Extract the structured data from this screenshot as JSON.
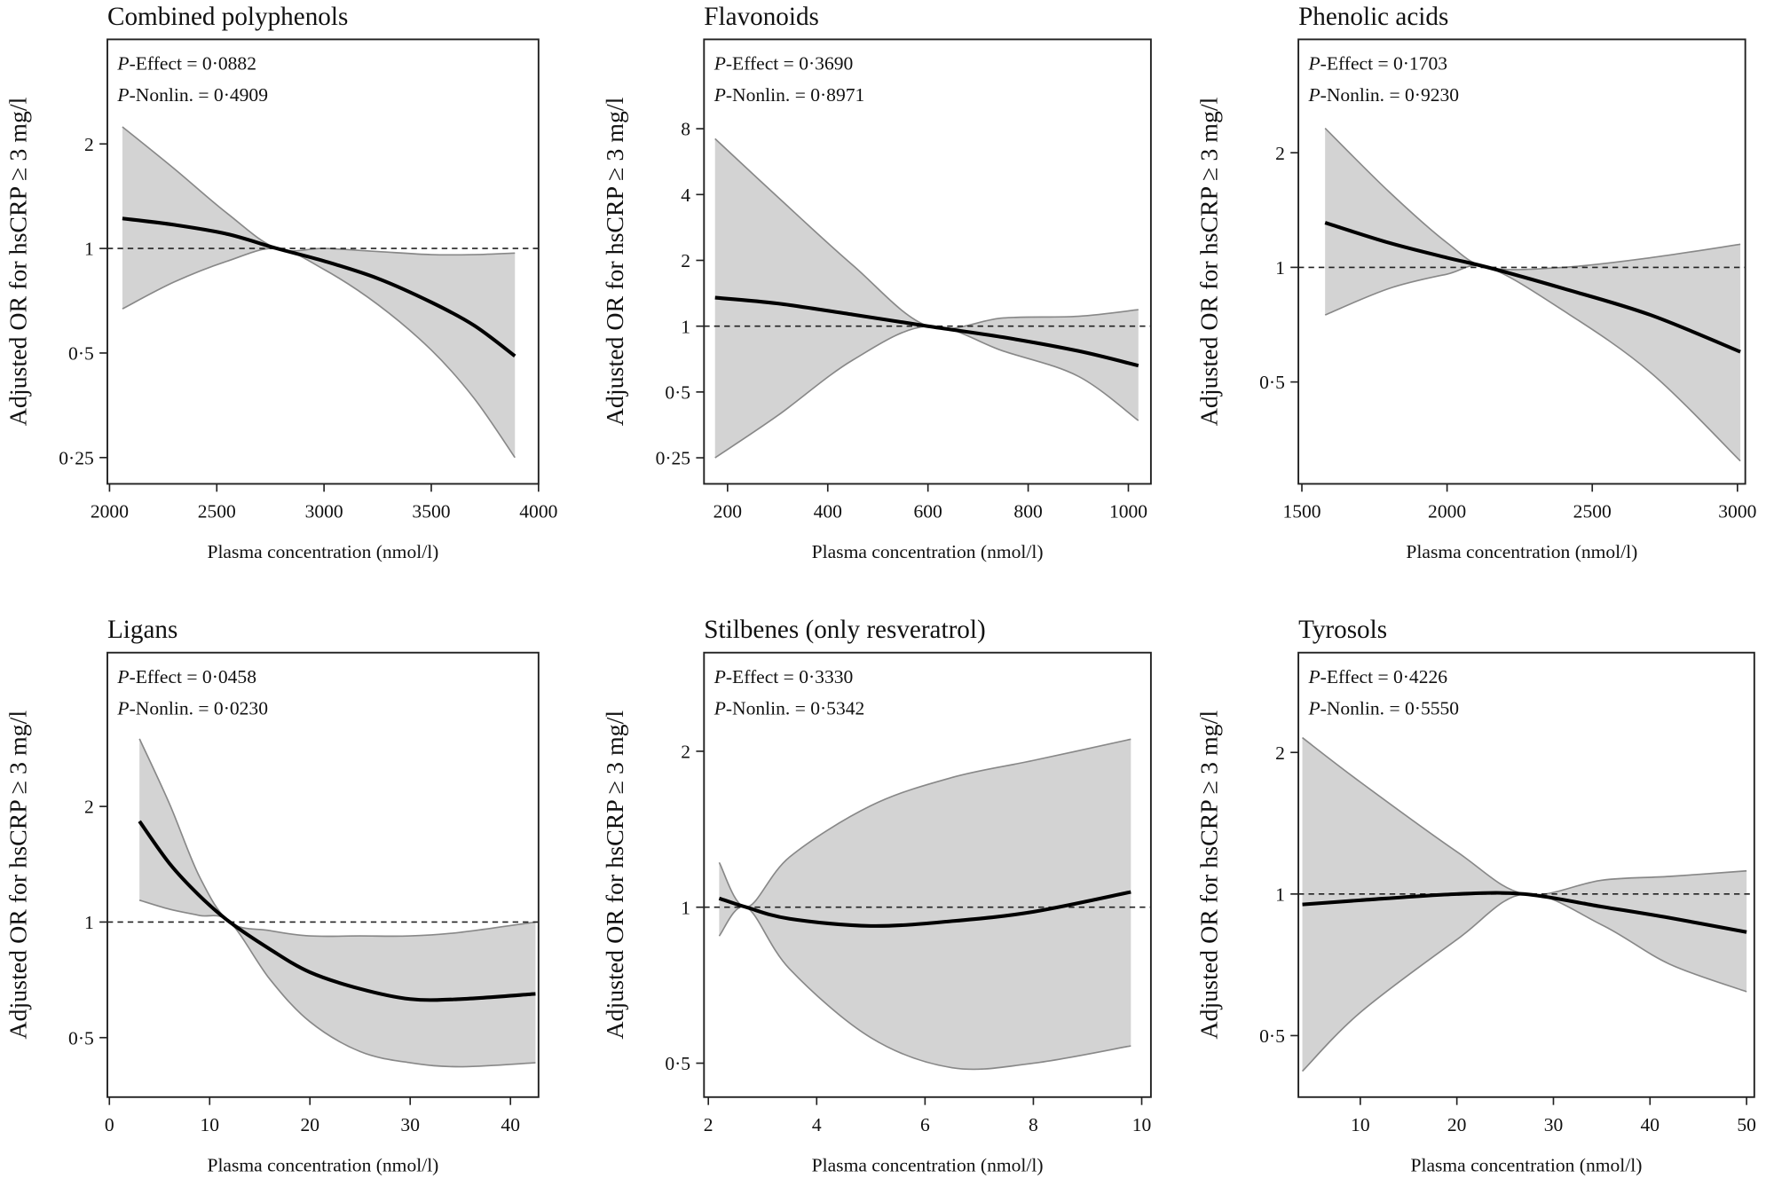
{
  "chart_data": [
    {
      "type": "line",
      "title": "Combined polyphenols",
      "xlabel": "Plasma concentration (nmol/l)",
      "ylabel": "Adjusted OR for hsCRP ≥ 3 mg/l",
      "annotations": [
        {
          "prefix": "P",
          "text": "-Effect = 0·0882"
        },
        {
          "prefix": "P",
          "text": "-Nonlin. = 0·4909"
        }
      ],
      "x": [
        2060,
        2300,
        2550,
        2780,
        3000,
        3250,
        3500,
        3700,
        3890
      ],
      "values": [
        1.22,
        1.17,
        1.1,
        1.0,
        0.92,
        0.82,
        0.7,
        0.6,
        0.49
      ],
      "upper": [
        2.24,
        1.7,
        1.26,
        1.0,
        1.0,
        0.98,
        0.96,
        0.96,
        0.97
      ],
      "lower": [
        0.67,
        0.8,
        0.92,
        1.0,
        0.87,
        0.69,
        0.51,
        0.37,
        0.25
      ],
      "xlim": [
        1990,
        4000
      ],
      "ylim": [
        0.21,
        4
      ],
      "log_y": true,
      "reference_line": 1,
      "xticks": [
        2000,
        2500,
        3000,
        3500,
        4000
      ],
      "yticks": [
        {
          "value": 0.25,
          "label": "0·25"
        },
        {
          "value": 0.5,
          "label": "0·5"
        },
        1,
        2
      ],
      "color": "#000000",
      "band_color": "#d3d3d3"
    },
    {
      "type": "line",
      "title": "Flavonoids",
      "xlabel": "Plasma concentration (nmol/l)",
      "ylabel": "Adjusted OR for hsCRP ≥ 3 mg/l",
      "annotations": [
        {
          "prefix": "P",
          "text": "-Effect = 0·3690"
        },
        {
          "prefix": "P",
          "text": "-Nonlin. = 0·8971"
        }
      ],
      "x": [
        175,
        300,
        450,
        600,
        750,
        900,
        1020
      ],
      "values": [
        1.35,
        1.27,
        1.13,
        1.0,
        0.89,
        0.77,
        0.66
      ],
      "upper": [
        7.2,
        3.9,
        1.9,
        1.0,
        1.09,
        1.11,
        1.19
      ],
      "lower": [
        0.25,
        0.39,
        0.7,
        1.0,
        0.77,
        0.59,
        0.37
      ],
      "xlim": [
        153,
        1045
      ],
      "ylim": [
        0.19,
        20.5
      ],
      "log_y": true,
      "reference_line": 1,
      "xticks": [
        200,
        400,
        600,
        800,
        1000
      ],
      "yticks": [
        {
          "value": 0.25,
          "label": "0·25"
        },
        {
          "value": 0.5,
          "label": "0·5"
        },
        1,
        2,
        4,
        8
      ],
      "color": "#000000",
      "band_color": "#d3d3d3"
    },
    {
      "type": "line",
      "title": "Phenolic acids",
      "xlabel": "Plasma concentration (nmol/l)",
      "ylabel": "Adjusted OR for hsCRP ≥ 3 mg/l",
      "annotations": [
        {
          "prefix": "P",
          "text": "-Effect = 0·1703"
        },
        {
          "prefix": "P",
          "text": "-Nonlin. = 0·9230"
        }
      ],
      "x": [
        1580,
        1800,
        2000,
        2140,
        2400,
        2700,
        3010
      ],
      "values": [
        1.31,
        1.16,
        1.06,
        1.0,
        0.88,
        0.75,
        0.6
      ],
      "upper": [
        2.32,
        1.58,
        1.16,
        1.0,
        1.0,
        1.06,
        1.15
      ],
      "lower": [
        0.75,
        0.88,
        0.96,
        1.0,
        0.77,
        0.53,
        0.31
      ],
      "xlim": [
        1488,
        3027
      ],
      "ylim": [
        0.27,
        3.97
      ],
      "log_y": true,
      "reference_line": 1,
      "xticks": [
        1500,
        2000,
        2500,
        3000
      ],
      "yticks": [
        {
          "value": 0.5,
          "label": "0·5"
        },
        1,
        2
      ],
      "color": "#000000",
      "band_color": "#d3d3d3"
    },
    {
      "type": "line",
      "title": "Ligans",
      "xlabel": "Plasma concentration (nmol/l)",
      "ylabel": "Adjusted OR for hsCRP ≥ 3 mg/l",
      "annotations": [
        {
          "prefix": "P",
          "text": "-Effect = 0·0458"
        },
        {
          "prefix": "P",
          "text": "-Nonlin. = 0·0230"
        }
      ],
      "x": [
        3,
        6,
        9,
        12,
        16,
        20,
        25,
        30,
        35,
        42.5
      ],
      "values": [
        1.83,
        1.42,
        1.17,
        1.0,
        0.85,
        0.74,
        0.67,
        0.63,
        0.63,
        0.65
      ],
      "upper": [
        3.0,
        2.03,
        1.31,
        1.0,
        0.95,
        0.92,
        0.92,
        0.92,
        0.94,
        1.0
      ],
      "lower": [
        1.14,
        1.08,
        1.04,
        1.0,
        0.71,
        0.55,
        0.46,
        0.43,
        0.42,
        0.43
      ],
      "xlim": [
        -0.2,
        42.8
      ],
      "ylim": [
        0.35,
        5.03
      ],
      "log_y": true,
      "reference_line": 1,
      "xticks": [
        0,
        10,
        20,
        30,
        40
      ],
      "yticks": [
        {
          "value": 0.5,
          "label": "0·5"
        },
        1,
        2
      ],
      "color": "#000000",
      "band_color": "#d3d3d3"
    },
    {
      "type": "line",
      "title": "Stilbenes (only resveratrol)",
      "xlabel": "Plasma concentration (nmol/l)",
      "ylabel": "Adjusted OR for hsCRP ≥ 3 mg/l",
      "annotations": [
        {
          "prefix": "P",
          "text": "-Effect = 0·3330"
        },
        {
          "prefix": "P",
          "text": "-Nonlin. = 0·5342"
        }
      ],
      "x": [
        2.2,
        2.7,
        3.5,
        5,
        6.5,
        8,
        9.8
      ],
      "values": [
        1.04,
        1.0,
        0.95,
        0.92,
        0.94,
        0.98,
        1.07
      ],
      "upper": [
        1.22,
        1.0,
        1.25,
        1.57,
        1.78,
        1.92,
        2.11
      ],
      "lower": [
        0.88,
        1.0,
        0.76,
        0.56,
        0.49,
        0.5,
        0.54
      ],
      "xlim": [
        1.92,
        10.17
      ],
      "ylim": [
        0.43,
        3.1
      ],
      "log_y": true,
      "reference_line": 1,
      "xticks": [
        2,
        4,
        6,
        8,
        10
      ],
      "yticks": [
        {
          "value": 0.5,
          "label": "0·5"
        },
        1,
        2
      ],
      "color": "#000000",
      "band_color": "#d3d3d3"
    },
    {
      "type": "line",
      "title": "Tyrosols",
      "xlabel": "Plasma concentration (nmol/l)",
      "ylabel": "Adjusted OR for hsCRP ≥ 3 mg/l",
      "annotations": [
        {
          "prefix": "P",
          "text": "-Effect = 0·4226"
        },
        {
          "prefix": "P",
          "text": "-Nonlin. = 0·5550"
        }
      ],
      "x": [
        4,
        10,
        20,
        27,
        35,
        42,
        50
      ],
      "values": [
        0.95,
        0.97,
        1.0,
        1.0,
        0.94,
        0.89,
        0.83
      ],
      "upper": [
        2.15,
        1.73,
        1.23,
        1.0,
        1.07,
        1.09,
        1.12
      ],
      "lower": [
        0.42,
        0.56,
        0.8,
        1.0,
        0.86,
        0.71,
        0.62
      ],
      "xlim": [
        3.59,
        50.8
      ],
      "ylim": [
        0.37,
        3.26
      ],
      "log_y": true,
      "reference_line": 1,
      "xticks": [
        10,
        20,
        30,
        40,
        50
      ],
      "yticks": [
        {
          "value": 0.5,
          "label": "0·5"
        },
        1,
        2
      ],
      "color": "#000000",
      "band_color": "#d3d3d3"
    }
  ]
}
